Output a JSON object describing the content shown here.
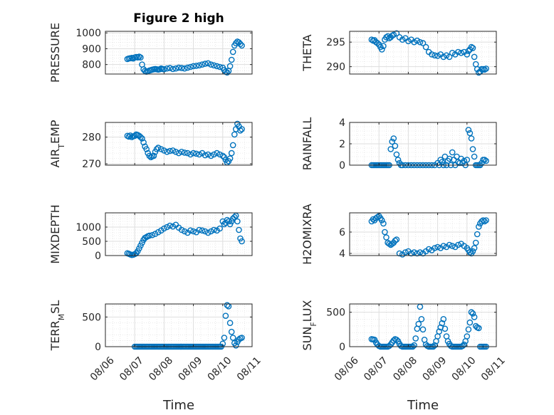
{
  "figure": {
    "title": "Figure 2 high",
    "xlabel": "Time",
    "marker_color": "#0072BD"
  },
  "x_ticks": [
    "08/06",
    "08/07",
    "08/08",
    "08/09",
    "08/10",
    "08/11"
  ],
  "x_tick_values": [
    0,
    1,
    2,
    3,
    4,
    5
  ],
  "chart_data": [
    {
      "type": "scatter",
      "ylabel": "PRESSURE",
      "ylim": [
        740,
        1010
      ],
      "yticks": [
        800,
        900,
        1000
      ],
      "ytick_labels": [
        "800",
        "900",
        "1000"
      ],
      "x": [
        0.75,
        0.8,
        0.85,
        0.9,
        0.95,
        1.0,
        1.05,
        1.1,
        1.15,
        1.2,
        1.25,
        1.3,
        1.35,
        1.4,
        1.45,
        1.5,
        1.55,
        1.6,
        1.65,
        1.7,
        1.75,
        1.8,
        1.85,
        1.9,
        1.95,
        2.0,
        2.1,
        2.2,
        2.3,
        2.4,
        2.5,
        2.6,
        2.7,
        2.8,
        2.9,
        3.0,
        3.1,
        3.2,
        3.3,
        3.4,
        3.5,
        3.6,
        3.7,
        3.8,
        3.9,
        4.0,
        4.05,
        4.1,
        4.15,
        4.2,
        4.25,
        4.3,
        4.35,
        4.4,
        4.45,
        4.5,
        4.55,
        4.6,
        4.65
      ],
      "y": [
        835,
        838,
        840,
        842,
        838,
        845,
        848,
        845,
        850,
        845,
        800,
        770,
        760,
        755,
        758,
        762,
        765,
        768,
        770,
        772,
        770,
        768,
        770,
        775,
        772,
        770,
        775,
        778,
        772,
        775,
        780,
        778,
        775,
        780,
        785,
        790,
        792,
        795,
        800,
        805,
        808,
        800,
        795,
        790,
        785,
        780,
        765,
        755,
        750,
        760,
        790,
        830,
        880,
        920,
        935,
        945,
        940,
        930,
        920
      ],
      "series_name": "PRESSURE"
    },
    {
      "type": "scatter",
      "ylabel": "THETA",
      "ylim": [
        288.5,
        297.2
      ],
      "yticks": [
        290,
        295
      ],
      "ytick_labels": [
        "290",
        "295"
      ],
      "x": [
        0.75,
        0.8,
        0.85,
        0.9,
        0.95,
        1.0,
        1.05,
        1.1,
        1.15,
        1.2,
        1.25,
        1.3,
        1.35,
        1.4,
        1.45,
        1.5,
        1.6,
        1.7,
        1.8,
        1.9,
        2.0,
        2.1,
        2.2,
        2.3,
        2.4,
        2.5,
        2.6,
        2.7,
        2.8,
        2.9,
        3.0,
        3.1,
        3.2,
        3.3,
        3.4,
        3.5,
        3.6,
        3.7,
        3.8,
        3.9,
        4.0,
        4.05,
        4.1,
        4.15,
        4.2,
        4.25,
        4.3,
        4.35,
        4.4,
        4.45,
        4.5,
        4.55,
        4.6,
        4.65
      ],
      "y": [
        295.5,
        295.3,
        295.4,
        295.0,
        294.8,
        294.5,
        294.0,
        293.5,
        294.2,
        295.5,
        296.0,
        296.2,
        295.8,
        296.0,
        296.3,
        296.5,
        296.8,
        296.0,
        295.5,
        295.8,
        295.2,
        295.5,
        295.0,
        295.3,
        295.0,
        294.8,
        294.0,
        293.0,
        292.5,
        292.3,
        292.2,
        292.5,
        292.0,
        292.3,
        292.0,
        292.8,
        292.5,
        293.0,
        292.8,
        293.0,
        292.5,
        293.2,
        293.5,
        294.0,
        293.8,
        292.0,
        290.5,
        289.5,
        288.8,
        289.0,
        289.5,
        289.5,
        289.4,
        289.6
      ],
      "series_name": "THETA"
    },
    {
      "type": "scatter",
      "ylabel": "AIR_TEMP",
      "ylim": [
        269.5,
        285.5
      ],
      "yticks": [
        270,
        280
      ],
      "ytick_labels": [
        "270",
        "280"
      ],
      "x": [
        0.75,
        0.8,
        0.85,
        0.9,
        0.95,
        1.0,
        1.05,
        1.1,
        1.15,
        1.2,
        1.25,
        1.3,
        1.35,
        1.4,
        1.45,
        1.5,
        1.55,
        1.6,
        1.65,
        1.7,
        1.75,
        1.8,
        1.9,
        2.0,
        2.1,
        2.2,
        2.3,
        2.4,
        2.5,
        2.6,
        2.7,
        2.8,
        2.9,
        3.0,
        3.1,
        3.2,
        3.3,
        3.4,
        3.5,
        3.6,
        3.7,
        3.8,
        3.9,
        4.0,
        4.05,
        4.1,
        4.15,
        4.2,
        4.25,
        4.3,
        4.35,
        4.4,
        4.45,
        4.5,
        4.55,
        4.6,
        4.65
      ],
      "y": [
        280.5,
        280.2,
        280.6,
        280.0,
        280.3,
        280.5,
        281.0,
        280.8,
        280.5,
        280.0,
        279.5,
        278.0,
        276.5,
        275.5,
        274.0,
        273.0,
        272.5,
        272.8,
        273.0,
        274.5,
        275.5,
        276.0,
        275.5,
        275.0,
        274.5,
        274.8,
        275.0,
        274.5,
        274.0,
        274.5,
        274.2,
        274.0,
        273.5,
        274.0,
        273.8,
        273.5,
        274.0,
        273.2,
        273.5,
        273.0,
        273.5,
        274.0,
        273.5,
        273.0,
        272.5,
        271.5,
        270.5,
        271.0,
        272.0,
        274.0,
        277.0,
        281.0,
        283.0,
        285.0,
        284.0,
        282.5,
        283.0
      ],
      "series_name": "AIR_TEMP"
    },
    {
      "type": "scatter",
      "ylabel": "RAINFALL",
      "ylim": [
        0,
        4
      ],
      "yticks": [
        0,
        2,
        4
      ],
      "ytick_labels": [
        "0",
        "2",
        "4"
      ],
      "x": [
        0.75,
        0.8,
        0.85,
        0.9,
        0.95,
        1.0,
        1.05,
        1.1,
        1.15,
        1.2,
        1.25,
        1.3,
        1.35,
        1.4,
        1.45,
        1.5,
        1.55,
        1.6,
        1.65,
        1.7,
        1.75,
        1.8,
        1.9,
        2.0,
        2.1,
        2.2,
        2.3,
        2.4,
        2.5,
        2.6,
        2.7,
        2.8,
        2.9,
        3.0,
        3.05,
        3.1,
        3.15,
        3.2,
        3.25,
        3.3,
        3.35,
        3.4,
        3.45,
        3.5,
        3.55,
        3.6,
        3.65,
        3.7,
        3.75,
        3.8,
        3.85,
        3.9,
        3.95,
        4.0,
        4.05,
        4.1,
        4.15,
        4.2,
        4.25,
        4.3,
        4.35,
        4.4,
        4.45,
        4.5,
        4.55,
        4.6,
        4.65
      ],
      "y": [
        0,
        0,
        0,
        0,
        0,
        0,
        0,
        0,
        0,
        0,
        0,
        0,
        0,
        1.5,
        2.2,
        2.5,
        1.8,
        1.0,
        0.5,
        0.2,
        0,
        0,
        0,
        0,
        0,
        0,
        0,
        0,
        0,
        0,
        0,
        0,
        0,
        0.2,
        0,
        0.5,
        0.3,
        0,
        0.8,
        0,
        0.4,
        0.6,
        0,
        1.2,
        0.5,
        0,
        0.8,
        0.3,
        0.2,
        0.6,
        0.2,
        0.4,
        0,
        0.5,
        3.3,
        3.0,
        2.5,
        1.5,
        0.8,
        0,
        0,
        0,
        0,
        0.2,
        0.5,
        0.5,
        0.4
      ],
      "series_name": "RAINFALL"
    },
    {
      "type": "scatter",
      "ylabel": "MIXDEPTH",
      "ylim": [
        0,
        1500
      ],
      "yticks": [
        0,
        500,
        1000
      ],
      "ytick_labels": [
        "0",
        "500",
        "1000"
      ],
      "x": [
        0.75,
        0.8,
        0.85,
        0.9,
        0.95,
        1.0,
        1.05,
        1.1,
        1.15,
        1.2,
        1.25,
        1.3,
        1.35,
        1.4,
        1.45,
        1.5,
        1.6,
        1.7,
        1.8,
        1.9,
        2.0,
        2.1,
        2.2,
        2.3,
        2.4,
        2.5,
        2.6,
        2.7,
        2.8,
        2.9,
        3.0,
        3.1,
        3.2,
        3.3,
        3.4,
        3.5,
        3.6,
        3.7,
        3.8,
        3.9,
        4.0,
        4.05,
        4.1,
        4.15,
        4.2,
        4.25,
        4.3,
        4.35,
        4.4,
        4.45,
        4.5,
        4.55,
        4.6,
        4.65
      ],
      "y": [
        80,
        60,
        40,
        20,
        30,
        50,
        80,
        150,
        250,
        350,
        450,
        550,
        620,
        650,
        680,
        700,
        720,
        760,
        820,
        880,
        950,
        1000,
        1050,
        1020,
        1080,
        980,
        900,
        850,
        800,
        880,
        850,
        820,
        900,
        880,
        850,
        800,
        850,
        900,
        880,
        950,
        1200,
        1100,
        1150,
        1250,
        1200,
        1100,
        1200,
        1300,
        1350,
        1400,
        1200,
        900,
        600,
        500
      ],
      "series_name": "MIXDEPTH"
    },
    {
      "type": "scatter",
      "ylabel": "H2OMIXRA",
      "ylim": [
        3.8,
        7.8
      ],
      "yticks": [
        4,
        6
      ],
      "ytick_labels": [
        "4",
        "6"
      ],
      "x": [
        0.75,
        0.8,
        0.85,
        0.9,
        0.95,
        1.0,
        1.05,
        1.1,
        1.15,
        1.2,
        1.25,
        1.3,
        1.35,
        1.4,
        1.45,
        1.5,
        1.55,
        1.6,
        1.7,
        1.8,
        1.9,
        2.0,
        2.1,
        2.2,
        2.3,
        2.4,
        2.5,
        2.6,
        2.7,
        2.8,
        2.9,
        3.0,
        3.1,
        3.2,
        3.3,
        3.4,
        3.5,
        3.6,
        3.7,
        3.8,
        3.9,
        4.0,
        4.05,
        4.1,
        4.15,
        4.2,
        4.25,
        4.3,
        4.35,
        4.4,
        4.45,
        4.5,
        4.55,
        4.6,
        4.65
      ],
      "y": [
        7.0,
        7.2,
        7.1,
        7.3,
        7.4,
        7.5,
        7.3,
        7.1,
        6.8,
        6.0,
        5.5,
        5.0,
        4.9,
        4.8,
        4.9,
        5.0,
        5.2,
        5.3,
        4.0,
        3.9,
        4.1,
        4.2,
        4.0,
        4.1,
        4.0,
        4.1,
        4.0,
        4.2,
        4.4,
        4.3,
        4.5,
        4.6,
        4.5,
        4.7,
        4.6,
        4.8,
        4.7,
        4.6,
        4.8,
        4.9,
        4.7,
        4.5,
        4.3,
        4.1,
        4.0,
        4.2,
        4.5,
        5.0,
        5.8,
        6.5,
        6.8,
        7.0,
        7.1,
        7.0,
        7.1
      ],
      "series_name": "H2OMIXRA"
    },
    {
      "type": "scatter",
      "ylabel": "TERR_MSL",
      "ylim": [
        0,
        720
      ],
      "yticks": [
        0,
        500
      ],
      "ytick_labels": [
        "0",
        "500"
      ],
      "x": [
        1.0,
        1.05,
        1.1,
        1.15,
        1.2,
        1.25,
        1.3,
        1.35,
        1.4,
        1.45,
        1.5,
        1.55,
        1.6,
        1.65,
        1.7,
        1.75,
        1.8,
        1.85,
        1.9,
        1.95,
        2.0,
        2.05,
        2.1,
        2.15,
        2.2,
        2.25,
        2.3,
        2.35,
        2.4,
        2.45,
        2.5,
        2.55,
        2.6,
        2.65,
        2.7,
        2.75,
        2.8,
        2.85,
        2.9,
        2.95,
        3.0,
        3.05,
        3.1,
        3.15,
        3.2,
        3.25,
        3.3,
        3.35,
        3.4,
        3.45,
        3.5,
        3.55,
        3.6,
        3.65,
        3.7,
        3.75,
        3.8,
        3.85,
        3.9,
        3.95,
        4.0,
        4.05,
        4.1,
        4.15,
        4.2,
        4.25,
        4.3,
        4.35,
        4.4,
        4.45,
        4.5,
        4.55,
        4.6,
        4.65
      ],
      "y": [
        0,
        0,
        0,
        0,
        0,
        0,
        0,
        0,
        0,
        0,
        0,
        0,
        0,
        0,
        0,
        0,
        0,
        0,
        0,
        0,
        0,
        0,
        0,
        0,
        0,
        0,
        0,
        0,
        0,
        0,
        0,
        0,
        0,
        0,
        0,
        0,
        0,
        0,
        0,
        0,
        0,
        0,
        0,
        0,
        0,
        0,
        0,
        0,
        0,
        0,
        0,
        0,
        0,
        0,
        0,
        0,
        0,
        0,
        0,
        0,
        50,
        150,
        520,
        700,
        680,
        400,
        250,
        150,
        60,
        20,
        80,
        120,
        140,
        150
      ],
      "series_name": "TERR_MSL"
    },
    {
      "type": "scatter",
      "ylabel": "SUN_FLUX",
      "ylim": [
        0,
        620
      ],
      "yticks": [
        0,
        500
      ],
      "ytick_labels": [
        "0",
        "500"
      ],
      "x": [
        0.75,
        0.8,
        0.85,
        0.9,
        0.95,
        1.0,
        1.05,
        1.1,
        1.15,
        1.2,
        1.25,
        1.3,
        1.35,
        1.4,
        1.45,
        1.5,
        1.55,
        1.6,
        1.65,
        1.7,
        1.75,
        1.8,
        1.85,
        1.9,
        1.95,
        2.0,
        2.05,
        2.1,
        2.15,
        2.2,
        2.25,
        2.3,
        2.35,
        2.4,
        2.45,
        2.5,
        2.55,
        2.6,
        2.65,
        2.7,
        2.75,
        2.8,
        2.85,
        2.9,
        2.95,
        3.0,
        3.05,
        3.1,
        3.15,
        3.2,
        3.25,
        3.3,
        3.35,
        3.4,
        3.45,
        3.5,
        3.55,
        3.6,
        3.65,
        3.7,
        3.75,
        3.8,
        3.85,
        3.9,
        3.95,
        4.0,
        4.05,
        4.1,
        4.15,
        4.2,
        4.25,
        4.3,
        4.35,
        4.4,
        4.45,
        4.5,
        4.55,
        4.6,
        4.65
      ],
      "y": [
        110,
        105,
        100,
        60,
        30,
        10,
        0,
        0,
        0,
        0,
        0,
        0,
        10,
        30,
        60,
        90,
        110,
        100,
        80,
        40,
        10,
        0,
        0,
        0,
        0,
        0,
        0,
        0,
        0,
        20,
        120,
        260,
        330,
        580,
        400,
        250,
        100,
        30,
        10,
        0,
        0,
        0,
        0,
        20,
        80,
        150,
        220,
        280,
        340,
        400,
        260,
        150,
        80,
        40,
        10,
        0,
        0,
        0,
        0,
        0,
        0,
        0,
        10,
        30,
        80,
        150,
        250,
        350,
        500,
        480,
        430,
        300,
        280,
        270,
        0,
        0,
        0,
        0,
        0
      ],
      "series_name": "SUN_FLUX"
    }
  ]
}
